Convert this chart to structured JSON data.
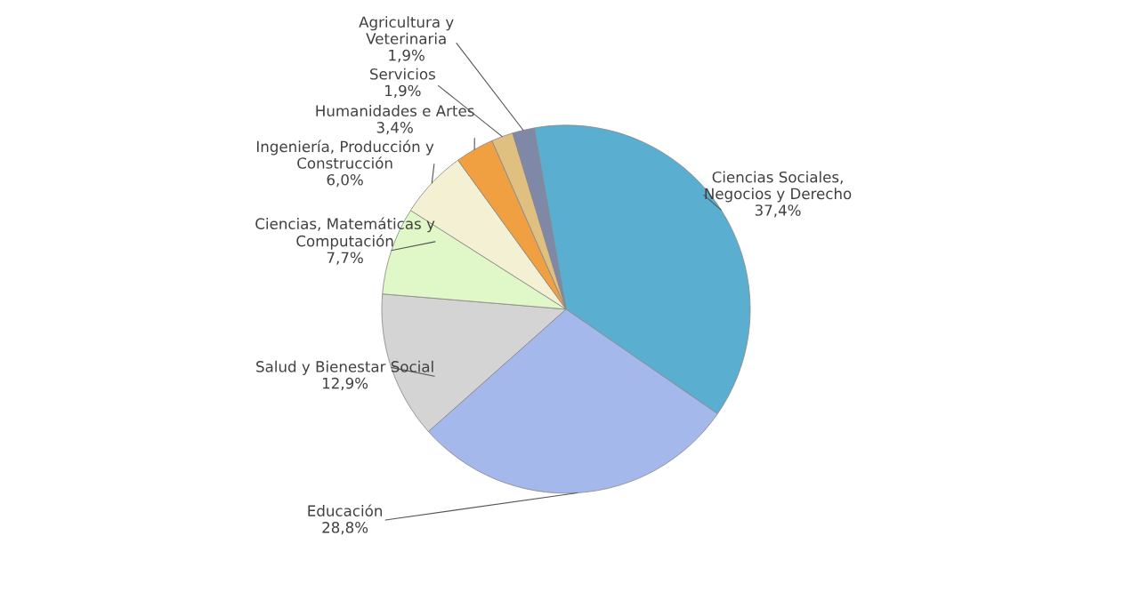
{
  "chart_data": {
    "type": "pie",
    "categories": [
      "Ciencias Sociales,\nNegocios y Derecho",
      "Educación",
      "Salud y Bienestar Social",
      "Ciencias, Matemáticas y\nComputación",
      "Ingeniería, Producción y\nConstrucción",
      "Humanidades e Artes",
      "Servicios",
      "Agricultura y\nVeterinaria"
    ],
    "values": [
      37.4,
      28.8,
      12.9,
      7.7,
      6.0,
      3.4,
      1.9,
      1.9
    ],
    "value_labels": [
      "37,4%",
      "28,8%",
      "12,9%",
      "7,7%",
      "6,0%",
      "3,4%",
      "1,9%",
      "1,9%"
    ],
    "colors": [
      "#5aaed0",
      "#a4b8ec",
      "#d4d4d4",
      "#e0f8c8",
      "#f4f0d4",
      "#f0a040",
      "#e0c080",
      "#8088a8"
    ]
  }
}
